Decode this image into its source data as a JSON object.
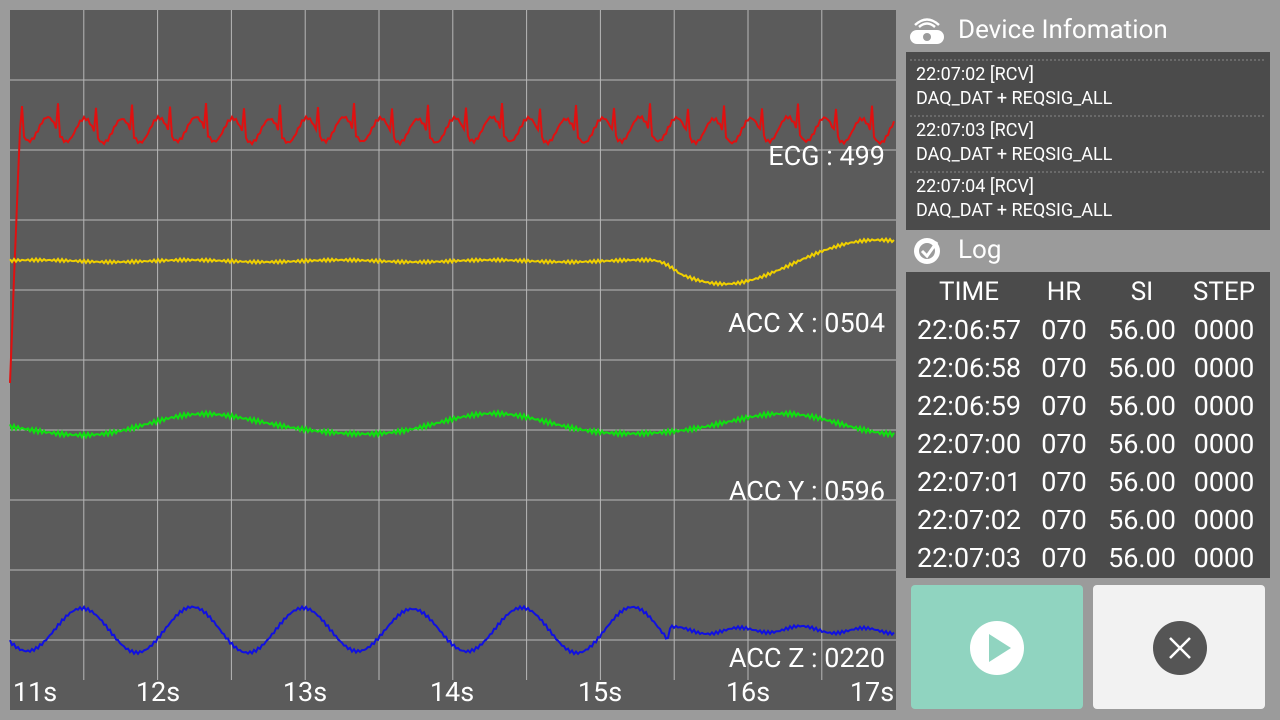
{
  "plot": {
    "channels": [
      {
        "label": "ECG : 499"
      },
      {
        "label": "ACC X : 0504"
      },
      {
        "label": "ACC Y : 0596"
      },
      {
        "label": "ACC Z : 0220"
      }
    ],
    "time_labels": [
      "11s",
      "12s",
      "13s",
      "14s",
      "15s",
      "16s",
      "17s"
    ]
  },
  "device_info": {
    "title": "Device Infomation",
    "messages": [
      {
        "time": "22:07:02 [RCV]",
        "text": "DAQ_DAT + REQSIG_ALL"
      },
      {
        "time": "22:07:03 [RCV]",
        "text": "DAQ_DAT + REQSIG_ALL"
      },
      {
        "time": "22:07:04 [RCV]",
        "text": "DAQ_DAT + REQSIG_ALL"
      }
    ]
  },
  "log": {
    "title": "Log",
    "columns": [
      "TIME",
      "HR",
      "SI",
      "STEP"
    ],
    "rows": [
      [
        "22:06:57",
        "070",
        "56.00",
        "0000"
      ],
      [
        "22:06:58",
        "070",
        "56.00",
        "0000"
      ],
      [
        "22:06:59",
        "070",
        "56.00",
        "0000"
      ],
      [
        "22:07:00",
        "070",
        "56.00",
        "0000"
      ],
      [
        "22:07:01",
        "070",
        "56.00",
        "0000"
      ],
      [
        "22:07:02",
        "070",
        "56.00",
        "0000"
      ],
      [
        "22:07:03",
        "070",
        "56.00",
        "0000"
      ]
    ]
  }
}
